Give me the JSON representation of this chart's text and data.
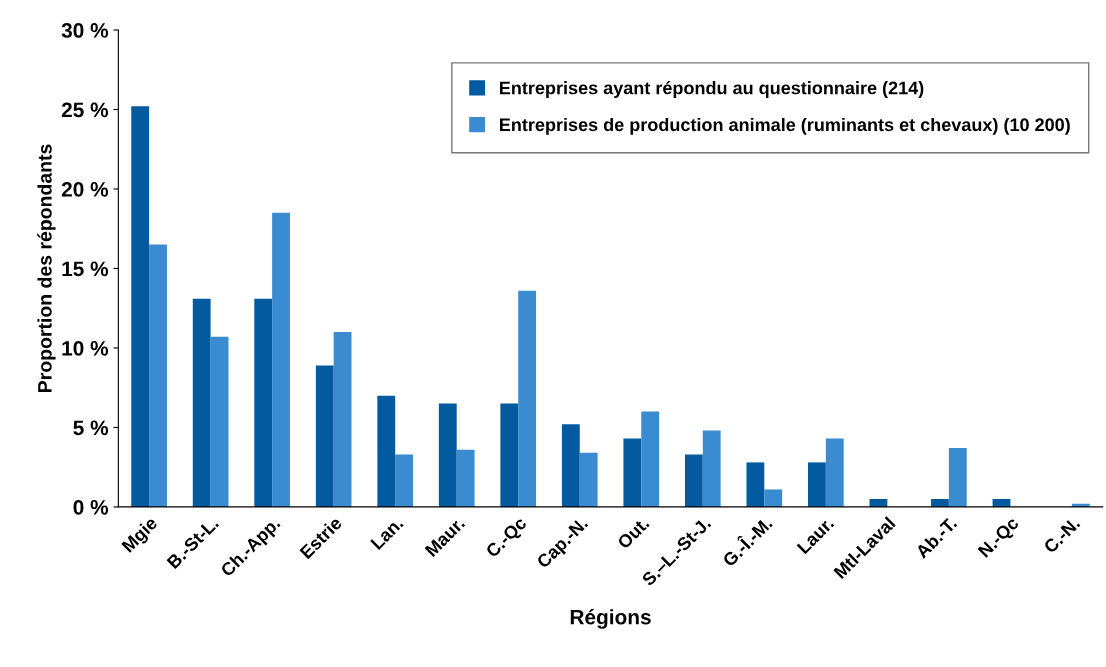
{
  "chart_data": {
    "type": "bar",
    "xlabel": "Régions",
    "ylabel": "Proportion des répondants",
    "categories": [
      "Mgie",
      "B.-St-L.",
      "Ch.-App.",
      "Estrie",
      "Lan.",
      "Maur.",
      "C.-Qc",
      "Cap.-N.",
      "Out.",
      "S.–L.-St-J.",
      "G.-Î.-M.",
      "Laur.",
      "Mtl-Laval",
      "Ab.-T.",
      "N.-Qc",
      "C.-N."
    ],
    "series": [
      {
        "name": "Entreprises ayant répondu au questionnaire (214)",
        "color": "#045a9f",
        "values": [
          25.2,
          13.1,
          13.1,
          8.9,
          7.0,
          6.5,
          6.5,
          5.2,
          4.3,
          3.3,
          2.8,
          2.8,
          0.5,
          0.5,
          0.5,
          0
        ]
      },
      {
        "name": "Entreprises de production animale (ruminants et chevaux) (10 200)",
        "color": "#3a8bcf",
        "values": [
          16.5,
          10.7,
          18.5,
          11.0,
          3.3,
          3.6,
          13.6,
          3.4,
          6.0,
          4.8,
          1.1,
          4.3,
          0,
          3.7,
          0,
          0.2
        ]
      }
    ],
    "ylim": [
      0,
      30
    ],
    "yticks": [
      {
        "value": 0,
        "label": "0 %"
      },
      {
        "value": 5,
        "label": "5 %"
      },
      {
        "value": 10,
        "label": "10 %"
      },
      {
        "value": 15,
        "label": "15 %"
      },
      {
        "value": 20,
        "label": "20 %"
      },
      {
        "value": 25,
        "label": "25 %"
      },
      {
        "value": 30,
        "label": "30 %"
      }
    ],
    "grid": false,
    "legend": "top right"
  }
}
